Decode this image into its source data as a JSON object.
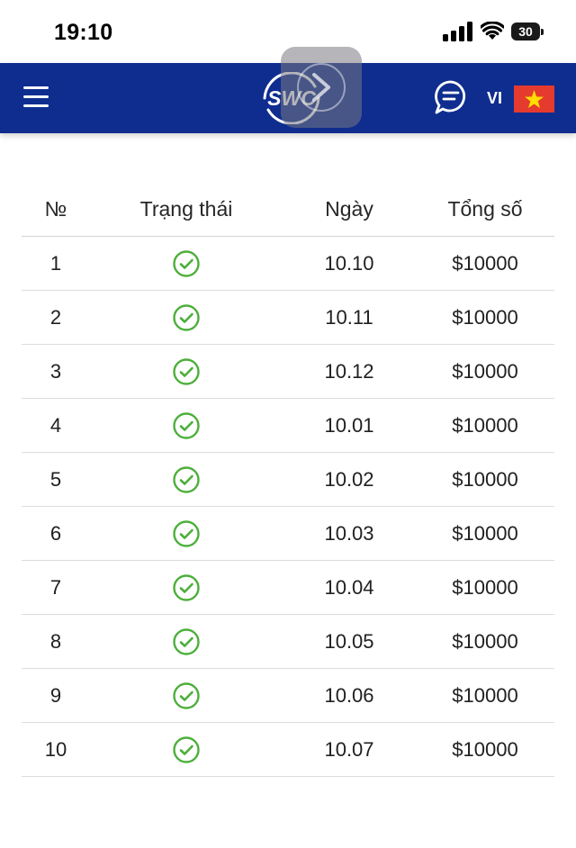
{
  "status_bar": {
    "time": "19:10",
    "battery": "30",
    "icons": [
      "signal-icon",
      "wifi-icon",
      "battery-icon"
    ]
  },
  "header": {
    "logo_text": "SWC",
    "language": "VI",
    "icons": [
      "menu-icon",
      "chat-icon",
      "vietnam-flag-icon"
    ],
    "colors": {
      "bar": "#0f2d8f",
      "flag_red": "#e53a2e",
      "flag_star": "#ffde00"
    }
  },
  "table": {
    "columns": {
      "no": "№",
      "status": "Trạng thái",
      "date": "Ngày",
      "total": "Tổng số"
    },
    "status_icon": "check-circle-icon",
    "status_color": "#4caf3a",
    "rows": [
      {
        "no": "1",
        "date": "10.10",
        "total": "$10000"
      },
      {
        "no": "2",
        "date": "10.11",
        "total": "$10000"
      },
      {
        "no": "3",
        "date": "10.12",
        "total": "$10000"
      },
      {
        "no": "4",
        "date": "10.01",
        "total": "$10000"
      },
      {
        "no": "5",
        "date": "10.02",
        "total": "$10000"
      },
      {
        "no": "6",
        "date": "10.03",
        "total": "$10000"
      },
      {
        "no": "7",
        "date": "10.04",
        "total": "$10000"
      },
      {
        "no": "8",
        "date": "10.05",
        "total": "$10000"
      },
      {
        "no": "9",
        "date": "10.06",
        "total": "$10000"
      },
      {
        "no": "10",
        "date": "10.07",
        "total": "$10000"
      }
    ]
  }
}
